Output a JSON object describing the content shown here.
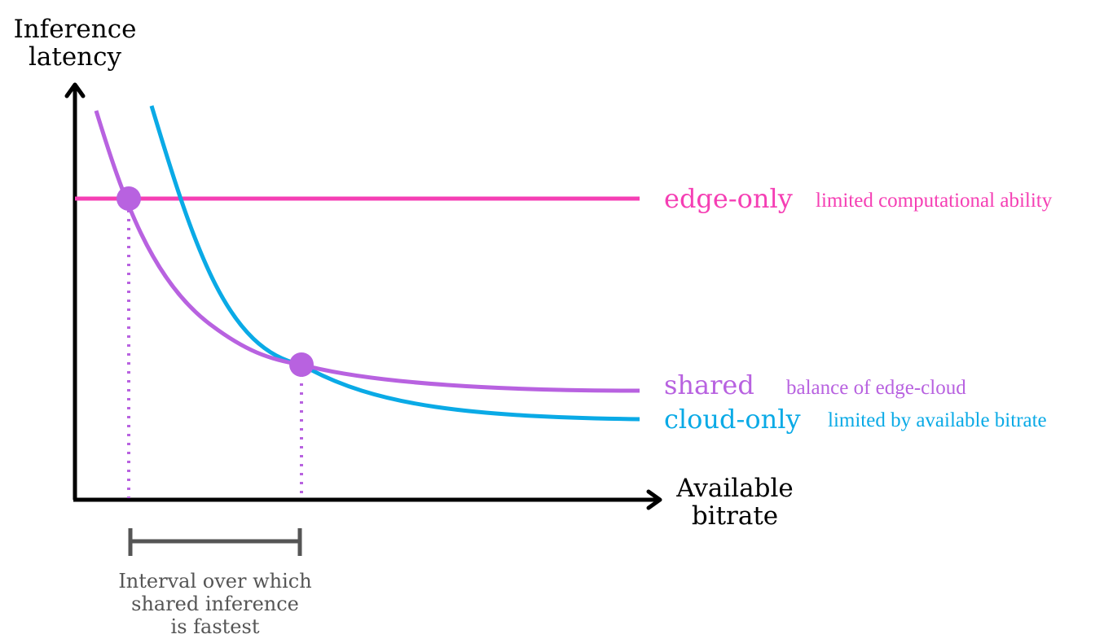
{
  "axes": {
    "y_label_line1": "Inference",
    "y_label_line2": "latency",
    "x_label_line1": "Available",
    "x_label_line2": "bitrate"
  },
  "series": {
    "edge": {
      "name": "edge-only",
      "note": "limited computational ability",
      "color": "#f53fb4"
    },
    "shared": {
      "name": "shared",
      "note": "balance of edge-cloud",
      "color": "#b862e0"
    },
    "cloud": {
      "name": "cloud-only",
      "note": "limited by available bitrate",
      "color": "#0aaae6"
    }
  },
  "interval": {
    "line1": "Interval over which",
    "line2": "shared inference",
    "line3": "is fastest",
    "color": "#555555"
  }
}
